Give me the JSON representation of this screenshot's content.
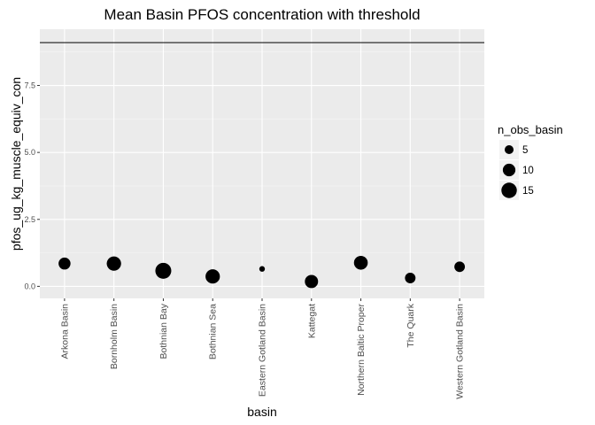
{
  "chart_data": {
    "type": "scatter",
    "title": "Mean Basin PFOS concentration with threshold",
    "xlabel": "basin",
    "ylabel": "pfos_ug_kg_muscle_equiv_con",
    "categories": [
      "Arkona Basin",
      "Bornholm Basin",
      "Bothnian Bay",
      "Bothnian Sea",
      "Eastern Gotland Basin",
      "Kattegat",
      "Northern Baltic Proper",
      "The Quark",
      "Western Gotland Basin"
    ],
    "values": [
      0.85,
      0.85,
      0.58,
      0.37,
      0.65,
      0.18,
      0.88,
      0.31,
      0.73
    ],
    "n_obs": [
      9,
      13,
      16,
      13,
      2,
      11,
      12,
      7,
      7
    ],
    "threshold": 9.1,
    "ylim": [
      -0.45,
      9.6
    ],
    "yticks": [
      0.0,
      2.5,
      5.0,
      7.5
    ],
    "ytick_labels": [
      "0.0",
      "2.5",
      "5.0",
      "7.5"
    ],
    "grid": true,
    "point_color": "#000000",
    "panel_color": "#ebebeb",
    "legend": {
      "title": "n_obs_basin",
      "placement": "right",
      "sizes": [
        5,
        10,
        15
      ],
      "labels": [
        "5",
        "10",
        "15"
      ]
    }
  }
}
